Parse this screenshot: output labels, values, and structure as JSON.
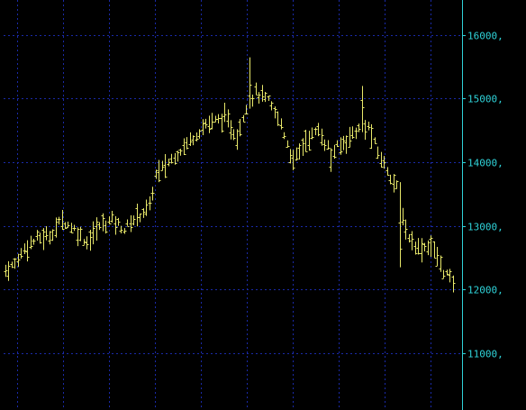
{
  "chart_data": {
    "type": "ohlc",
    "title": "",
    "xlabel": "",
    "ylabel": "",
    "ylim": [
      10150,
      16550
    ],
    "grid": true,
    "y_axis_side": "right",
    "y_ticks": [
      {
        "value": 11000,
        "label": "11000,"
      },
      {
        "value": 12000,
        "label": "12000,"
      },
      {
        "value": 13000,
        "label": "13000,"
      },
      {
        "value": 14000,
        "label": "14000,"
      },
      {
        "value": 15000,
        "label": "15000,"
      },
      {
        "value": 16000,
        "label": "16000,"
      }
    ],
    "x_gridlines": 10,
    "bar_count": 144,
    "colors": {
      "background": "#000000",
      "bars": "#e8e86a",
      "grid": "#1a2aa8",
      "axis": "#2fd2d8",
      "axis_text": "#2fd2d8"
    },
    "price_path": [
      [
        0,
        12300
      ],
      [
        3,
        12400
      ],
      [
        6,
        12650
      ],
      [
        10,
        12800
      ],
      [
        14,
        12850
      ],
      [
        18,
        13100
      ],
      [
        22,
        12950
      ],
      [
        26,
        12750
      ],
      [
        30,
        13000
      ],
      [
        34,
        13100
      ],
      [
        38,
        12950
      ],
      [
        42,
        13150
      ],
      [
        46,
        13300
      ],
      [
        48,
        13800
      ],
      [
        52,
        14000
      ],
      [
        58,
        14300
      ],
      [
        64,
        14600
      ],
      [
        70,
        14700
      ],
      [
        74,
        14400
      ],
      [
        77,
        14900
      ],
      [
        80,
        15100
      ],
      [
        84,
        14950
      ],
      [
        88,
        14600
      ],
      [
        92,
        14000
      ],
      [
        96,
        14350
      ],
      [
        100,
        14500
      ],
      [
        104,
        14150
      ],
      [
        108,
        14300
      ],
      [
        112,
        14500
      ],
      [
        116,
        14550
      ],
      [
        119,
        14150
      ],
      [
        123,
        13800
      ],
      [
        126,
        13500
      ],
      [
        128,
        12900
      ],
      [
        132,
        12650
      ],
      [
        136,
        12700
      ],
      [
        140,
        12300
      ],
      [
        143,
        12100
      ],
      [
        144,
        12050
      ]
    ]
  }
}
